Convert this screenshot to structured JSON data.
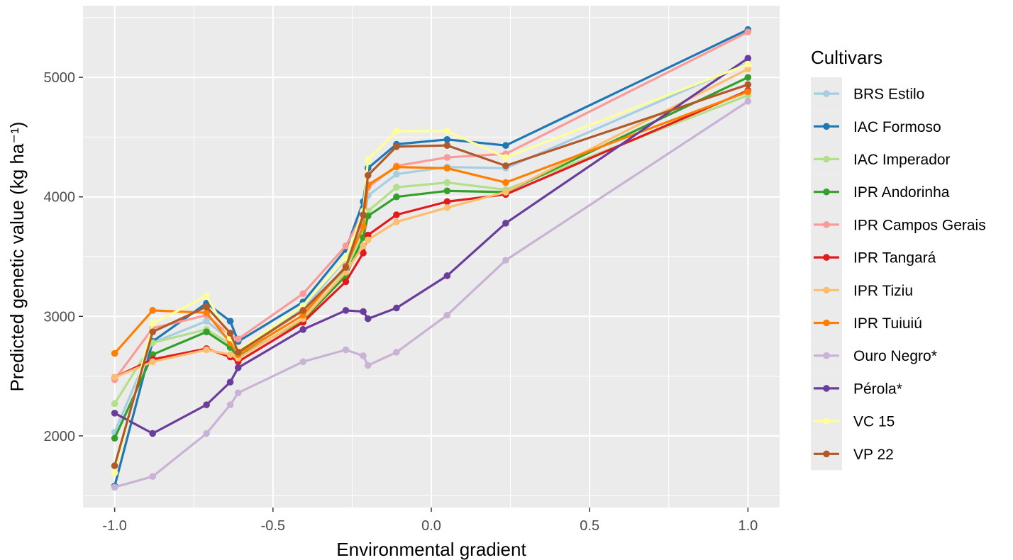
{
  "chart_data": {
    "type": "line",
    "xlabel": "Environmental gradient",
    "ylabel": "Predicted genetic value (kg ha⁻¹)",
    "xlim": [
      -1.1,
      1.1
    ],
    "ylim": [
      1400,
      5600
    ],
    "x_ticks": [
      -1.0,
      -0.5,
      0.0,
      0.5,
      1.0
    ],
    "x_tick_labels": [
      "-1.0",
      "-0.5",
      "0.0",
      "0.5",
      "1.0"
    ],
    "y_ticks": [
      2000,
      3000,
      4000,
      5000
    ],
    "y_tick_labels": [
      "2000",
      "3000",
      "4000",
      "5000"
    ],
    "grid": true,
    "legend_title": "Cultivars",
    "legend_position": "right",
    "x": [
      -1.0,
      -0.88,
      -0.71,
      -0.635,
      -0.61,
      -0.405,
      -0.27,
      -0.215,
      -0.2,
      -0.11,
      0.05,
      0.235,
      1.0
    ],
    "series": [
      {
        "name": "BRS Estilo",
        "color": "#a6cee3",
        "values": [
          2030,
          2780,
          2960,
          2800,
          2700,
          3060,
          3480,
          3780,
          4010,
          4190,
          4250,
          4240,
          5120
        ]
      },
      {
        "name": "IAC Formoso",
        "color": "#1f78b4",
        "values": [
          1580,
          2790,
          3110,
          2960,
          2790,
          3120,
          3560,
          3960,
          4240,
          4440,
          4480,
          4430,
          5400
        ]
      },
      {
        "name": "IAC Imperador",
        "color": "#b2df8a",
        "values": [
          2270,
          2780,
          2890,
          2770,
          2690,
          3050,
          3390,
          3690,
          3880,
          4080,
          4120,
          4060,
          4850
        ]
      },
      {
        "name": "IPR Andorinha",
        "color": "#33a02c",
        "values": [
          1980,
          2680,
          2870,
          2740,
          2660,
          2970,
          3340,
          3660,
          3840,
          4000,
          4050,
          4040,
          5000
        ]
      },
      {
        "name": "IPR Campos Gerais",
        "color": "#fb9a99",
        "values": [
          2470,
          2900,
          3010,
          2840,
          2810,
          3190,
          3590,
          3860,
          4080,
          4260,
          4330,
          4360,
          5380
        ]
      },
      {
        "name": "IPR Tangará",
        "color": "#e31a1c",
        "values": [
          2490,
          2640,
          2730,
          2660,
          2620,
          2950,
          3290,
          3530,
          3680,
          3850,
          3960,
          4020,
          4890
        ]
      },
      {
        "name": "IPR Tiziu",
        "color": "#fdbf6f",
        "values": [
          2490,
          2620,
          2720,
          2680,
          2650,
          2980,
          3370,
          3590,
          3640,
          3790,
          3910,
          4040,
          5070
        ]
      },
      {
        "name": "IPR Tuiuiú",
        "color": "#ff7f00",
        "values": [
          2690,
          3050,
          3030,
          2780,
          2680,
          3010,
          3420,
          3750,
          4100,
          4250,
          4240,
          4120,
          4880
        ]
      },
      {
        "name": "Ouro Negro*",
        "color": "#cab2d6",
        "values": [
          1570,
          1660,
          2020,
          2260,
          2360,
          2620,
          2720,
          2670,
          2590,
          2700,
          3010,
          3470,
          4800
        ]
      },
      {
        "name": "Pérola*",
        "color": "#6a3d9a",
        "values": [
          2190,
          2020,
          2260,
          2450,
          2570,
          2890,
          3050,
          3040,
          2980,
          3070,
          3340,
          3780,
          5160
        ]
      },
      {
        "name": "VC 15",
        "color": "#ffff99",
        "values": [
          1690,
          2940,
          3170,
          2820,
          2710,
          3090,
          3490,
          3880,
          4310,
          4550,
          4550,
          4330,
          5110
        ]
      },
      {
        "name": "VP 22",
        "color": "#b15928",
        "values": [
          1750,
          2870,
          3080,
          2860,
          2700,
          3050,
          3410,
          3850,
          4180,
          4420,
          4430,
          4260,
          4940
        ]
      }
    ]
  }
}
